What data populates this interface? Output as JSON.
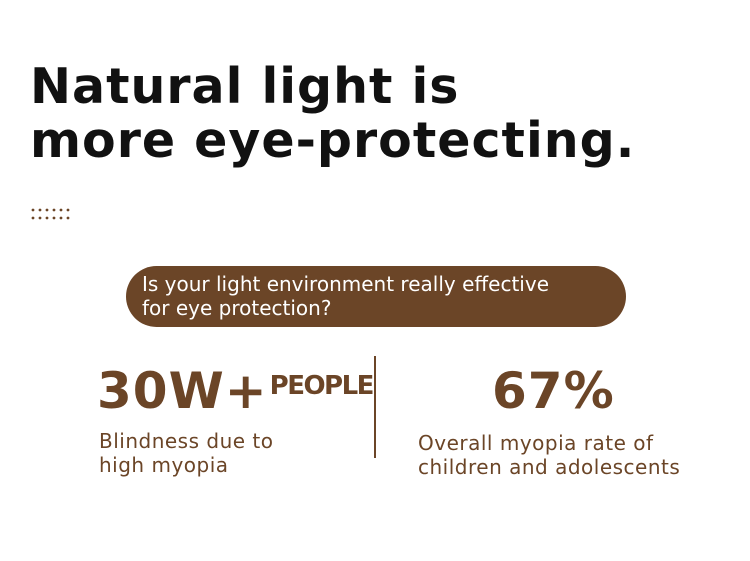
{
  "headline": {
    "line1": "Natural light is",
    "line2": "more eye-protecting."
  },
  "decor": {
    "dots_icon": "dotted-pattern-icon",
    "dots_color": "#6b4527"
  },
  "question": {
    "line1": "Is your light environment really effective",
    "line2": "for eye protection?"
  },
  "stats": {
    "left": {
      "value": "30W+",
      "unit": "PEOPLE",
      "desc_line1": "Blindness due to",
      "desc_line2": "high myopia"
    },
    "right": {
      "value": "67%",
      "desc_line1": "Overall myopia rate of",
      "desc_line2": "children and adolescents"
    }
  },
  "colors": {
    "accent": "#6b4527",
    "headline": "#111111",
    "background": "#ffffff"
  }
}
